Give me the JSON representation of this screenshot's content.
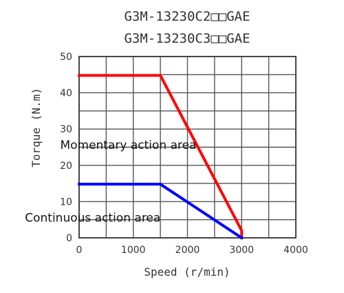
{
  "chart_data": {
    "type": "line",
    "title": [
      "G3M-13230C2□□GAE",
      "G3M-13230C3□□GAE"
    ],
    "xlabel": "Speed (r/min)",
    "ylabel": "Torque (N.m)",
    "xlim": [
      0,
      4000
    ],
    "ylim": [
      0,
      50
    ],
    "x_ticks": [
      0,
      1000,
      2000,
      3000,
      4000
    ],
    "y_ticks": [
      0,
      10,
      20,
      30,
      40,
      50
    ],
    "grid": true,
    "series": [
      {
        "color": "#ff0000",
        "x": [
          0,
          1500,
          3000,
          3000
        ],
        "y": [
          44.8,
          44.8,
          2,
          0
        ]
      },
      {
        "color": "#0000ff",
        "x": [
          0,
          1500,
          3000
        ],
        "y": [
          14.8,
          14.8,
          0
        ]
      }
    ],
    "annotations": [
      {
        "text": "Momentary action area",
        "x": -350,
        "y": 24.5
      },
      {
        "text": "Continuous action area",
        "x": -1000,
        "y": 4.5
      }
    ]
  }
}
